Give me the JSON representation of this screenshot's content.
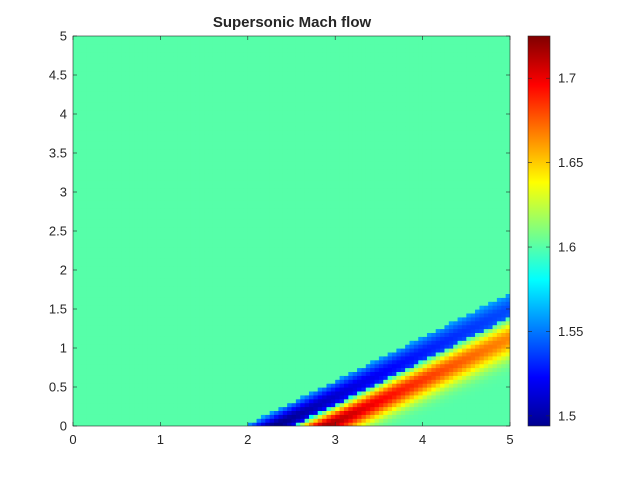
{
  "chart_data": {
    "type": "heatmap",
    "title": "Supersonic Mach flow",
    "xlabel": "",
    "ylabel": "",
    "xlim": [
      0,
      5
    ],
    "ylim": [
      0,
      5
    ],
    "xticks": [
      "0",
      "1",
      "2",
      "3",
      "4",
      "5"
    ],
    "yticks": [
      "0",
      "0.5",
      "1",
      "1.5",
      "2",
      "2.5",
      "3",
      "3.5",
      "4",
      "4.5",
      "5"
    ],
    "colormap": "jet",
    "colorbar": {
      "limits": [
        1.494,
        1.725
      ],
      "ticks": [
        "1.5",
        "1.55",
        "1.6",
        "1.65",
        "1.7"
      ],
      "tick_values": [
        1.5,
        1.55,
        1.6,
        1.65,
        1.7
      ]
    },
    "field": {
      "freestream_mach": 1.6,
      "expansion_wave": {
        "foot_x": 2.0,
        "min_mach": 1.494,
        "slope": 0.56
      },
      "compression_wave": {
        "foot_x": 2.55,
        "max_mach": 1.725,
        "slope": 0.56
      }
    },
    "grid": false
  }
}
